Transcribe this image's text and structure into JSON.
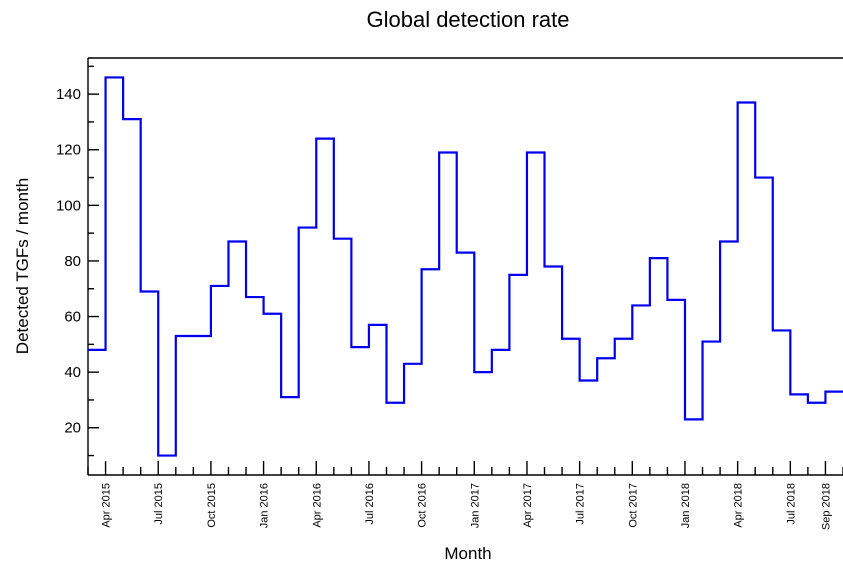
{
  "chart_data": {
    "type": "line",
    "step": true,
    "title": "Global detection rate",
    "xlabel": "Month",
    "ylabel": "Detected TGFs / month",
    "ylim": [
      3,
      153
    ],
    "yticks": [
      20,
      40,
      60,
      80,
      100,
      120,
      140
    ],
    "grid": false,
    "legend": "none",
    "colors": {
      "line": "#0000ee",
      "axis": "#000000"
    },
    "xlim": [
      "2015-03",
      "2018-10"
    ],
    "xtick_labels": [
      {
        "month": "2015-04",
        "label": "Apr 2015"
      },
      {
        "month": "2015-07",
        "label": "Jul 2015"
      },
      {
        "month": "2015-10",
        "label": "Oct 2015"
      },
      {
        "month": "2016-01",
        "label": "Jan 2016"
      },
      {
        "month": "2016-04",
        "label": "Apr 2016"
      },
      {
        "month": "2016-07",
        "label": "Jul 2016"
      },
      {
        "month": "2016-10",
        "label": "Oct 2016"
      },
      {
        "month": "2017-01",
        "label": "Jan 2017"
      },
      {
        "month": "2017-04",
        "label": "Apr 2017"
      },
      {
        "month": "2017-07",
        "label": "Jul 2017"
      },
      {
        "month": "2017-10",
        "label": "Oct 2017"
      },
      {
        "month": "2018-01",
        "label": "Jan 2018"
      },
      {
        "month": "2018-04",
        "label": "Apr 2018"
      },
      {
        "month": "2018-07",
        "label": "Jul 2018"
      },
      {
        "month": "2018-09",
        "label": "Sep 2018"
      }
    ],
    "series": [
      {
        "x": [
          "2015-03",
          "2015-04",
          "2015-05",
          "2015-06",
          "2015-07",
          "2015-08",
          "2015-09",
          "2015-10",
          "2015-11",
          "2015-12",
          "2016-01",
          "2016-02",
          "2016-03",
          "2016-04",
          "2016-05",
          "2016-06",
          "2016-07",
          "2016-08",
          "2016-09",
          "2016-10",
          "2016-11",
          "2016-12",
          "2017-01",
          "2017-02",
          "2017-03",
          "2017-04",
          "2017-05",
          "2017-06",
          "2017-07",
          "2017-08",
          "2017-09",
          "2017-10",
          "2017-11",
          "2017-12",
          "2018-01",
          "2018-02",
          "2018-03",
          "2018-04",
          "2018-05",
          "2018-06",
          "2018-07",
          "2018-08",
          "2018-09"
        ],
        "values": [
          48,
          146,
          131,
          69,
          10,
          53,
          53,
          71,
          87,
          67,
          61,
          31,
          92,
          124,
          88,
          49,
          57,
          29,
          43,
          77,
          119,
          83,
          40,
          48,
          75,
          119,
          78,
          52,
          37,
          45,
          52,
          64,
          81,
          66,
          23,
          51,
          87,
          137,
          110,
          55,
          32,
          29,
          33
        ]
      }
    ]
  }
}
